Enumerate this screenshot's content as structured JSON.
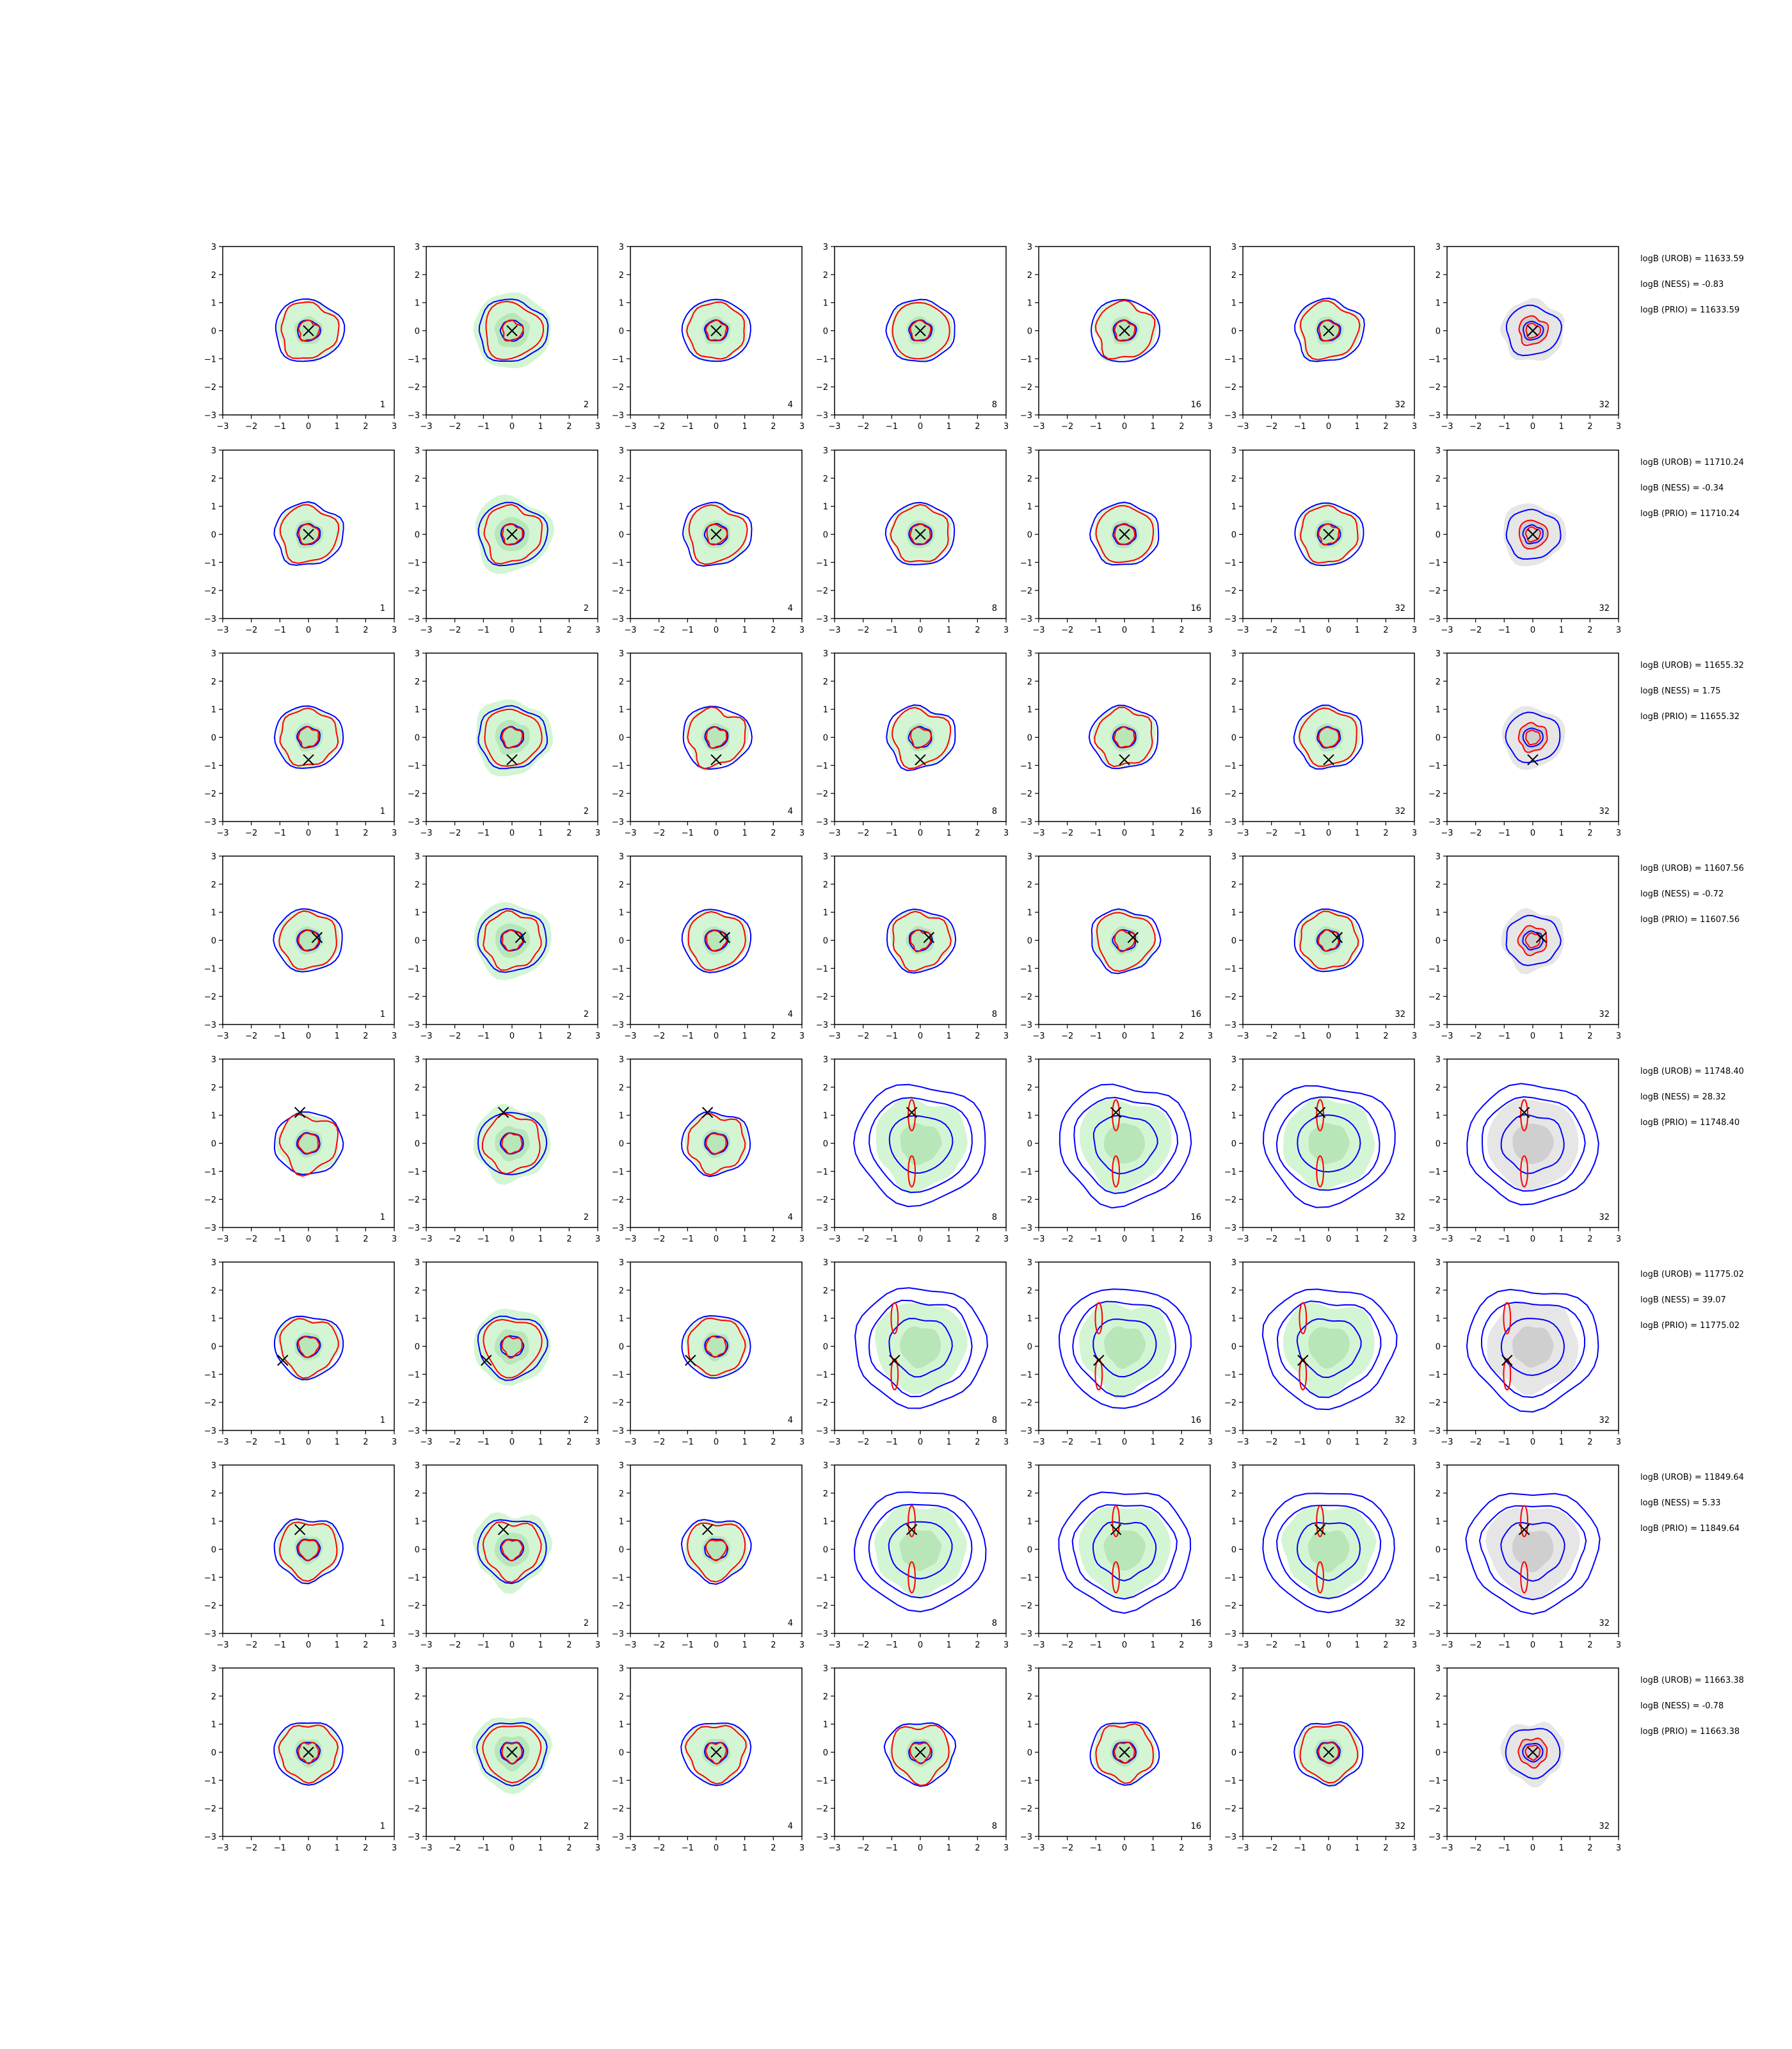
{
  "chart_data": {
    "type": "grid of contour plots",
    "rows": 8,
    "cols": 7,
    "xlim": [
      -3,
      3
    ],
    "ylim": [
      -3,
      3
    ],
    "xticks": [
      -3,
      -2,
      -1,
      0,
      1,
      2,
      3
    ],
    "yticks": [
      -3,
      -2,
      -1,
      0,
      1,
      2,
      3
    ],
    "grid": false,
    "colors": {
      "blue_contour": "#0000ff",
      "red_contour": "#ff0000",
      "green_fill": "#d4f5d4",
      "green_fill_dark": "#b8e6b8",
      "grey_fill": "#e6e6e6",
      "grey_fill_dark": "#cfcfcf",
      "marker": "#000000"
    },
    "panel_labels": [
      "1",
      "2",
      "4",
      "8",
      "16",
      "32",
      "32"
    ],
    "rows_data": [
      {
        "marker": [
          0.0,
          0.0
        ],
        "spread": "narrow",
        "notes": [
          "logB (UROB) = 11633.59",
          "logB (NESS) = -0.83",
          "logB (PRIO) = 11633.59"
        ]
      },
      {
        "marker": [
          0.0,
          0.0
        ],
        "spread": "narrow",
        "notes": [
          "logB (UROB) = 11710.24",
          "logB (NESS) = -0.34",
          "logB (PRIO) = 11710.24"
        ]
      },
      {
        "marker": [
          0.0,
          -0.8
        ],
        "spread": "narrow",
        "notes": [
          "logB (UROB) = 11655.32",
          "logB (NESS) = 1.75",
          "logB (PRIO) = 11655.32"
        ]
      },
      {
        "marker": [
          0.3,
          0.1
        ],
        "spread": "narrow",
        "notes": [
          "logB (UROB) = 11607.56",
          "logB (NESS) = -0.72",
          "logB (PRIO) = 11607.56"
        ]
      },
      {
        "marker": [
          -0.3,
          1.1
        ],
        "spread": "wide",
        "notes": [
          "logB (UROB) = 11748.40",
          "logB (NESS) = 28.32",
          "logB (PRIO) = 11748.40"
        ]
      },
      {
        "marker": [
          -0.9,
          -0.5
        ],
        "spread": "wide",
        "notes": [
          "logB (UROB) = 11775.02",
          "logB (NESS) = 39.07",
          "logB (PRIO) = 11775.02"
        ]
      },
      {
        "marker": [
          -0.3,
          0.7
        ],
        "spread": "wide",
        "notes": [
          "logB (UROB) = 11849.64",
          "logB (NESS) = 5.33",
          "logB (PRIO) = 11849.64"
        ]
      },
      {
        "marker": [
          0.0,
          0.0
        ],
        "spread": "narrow",
        "notes": [
          "logB (UROB) = 11663.38",
          "logB (NESS) = -0.78",
          "logB (PRIO) = 11663.38"
        ]
      }
    ]
  }
}
